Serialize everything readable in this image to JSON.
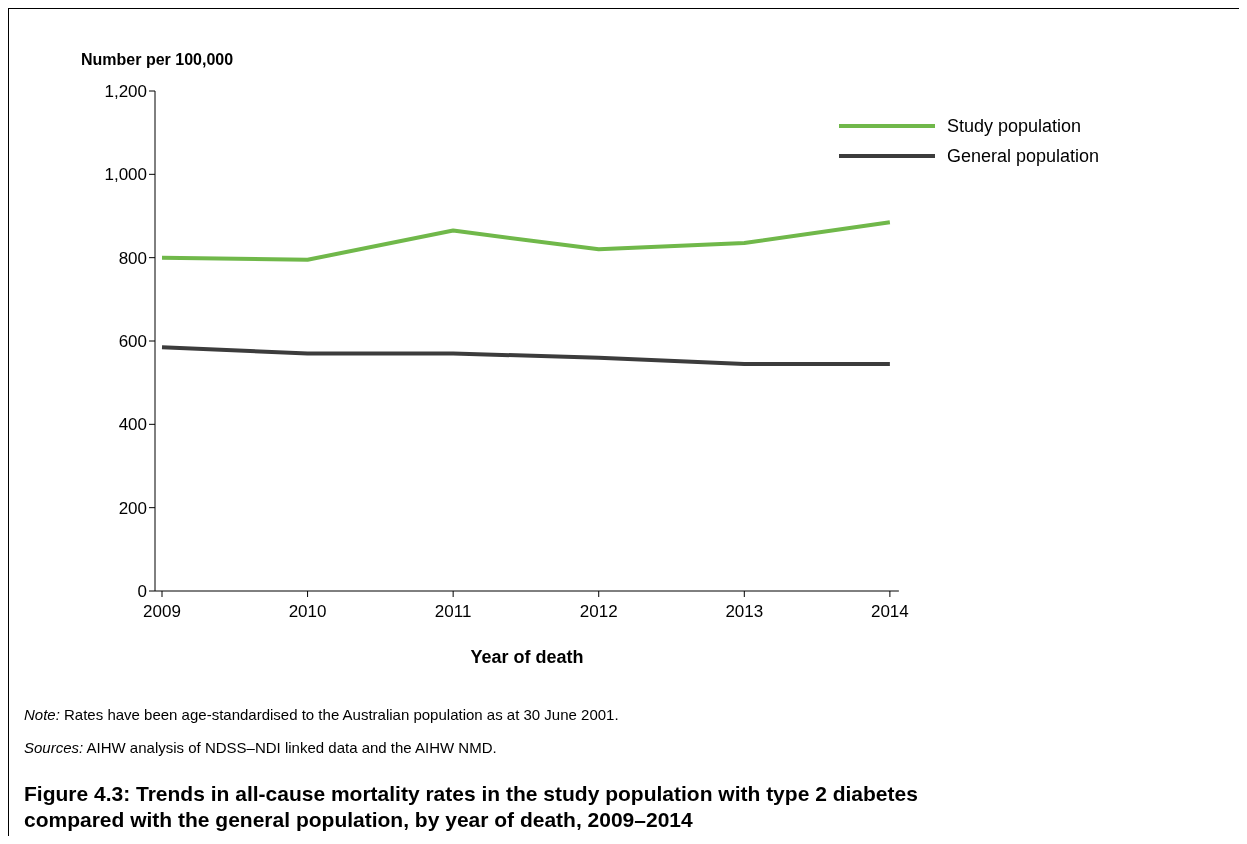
{
  "chart_data": {
    "type": "line",
    "title": "Figure 4.3: Trends in all-cause mortality rates in the study population with type 2 diabetes compared with the general population, by year of death, 2009–2014",
    "xlabel": "Year of death",
    "ylabel": "Number per 100,000",
    "categories": [
      "2009",
      "2010",
      "2011",
      "2012",
      "2013",
      "2014"
    ],
    "series": [
      {
        "name": "Study population",
        "color": "#70b84a",
        "values": [
          800,
          795,
          865,
          820,
          835,
          885
        ]
      },
      {
        "name": "General population",
        "color": "#3c3c3c",
        "values": [
          585,
          570,
          570,
          560,
          545,
          545
        ]
      }
    ],
    "ylim": [
      0,
      1200
    ],
    "yticks": [
      {
        "value": 0,
        "label": "0"
      },
      {
        "value": 200,
        "label": "200"
      },
      {
        "value": 400,
        "label": "400"
      },
      {
        "value": 600,
        "label": "600"
      },
      {
        "value": 800,
        "label": "800"
      },
      {
        "value": 1000,
        "label": "1,000"
      },
      {
        "value": 1200,
        "label": "1,200"
      }
    ],
    "grid": false,
    "legend": "top right",
    "marker": "none",
    "line_style": "solid",
    "annotations": [
      "Note: Rates have been age-standardised to the Australian population as at 30 June 2001.",
      "Sources: AIHW analysis of NDSS–NDI linked data and the AIHW NMD."
    ]
  }
}
